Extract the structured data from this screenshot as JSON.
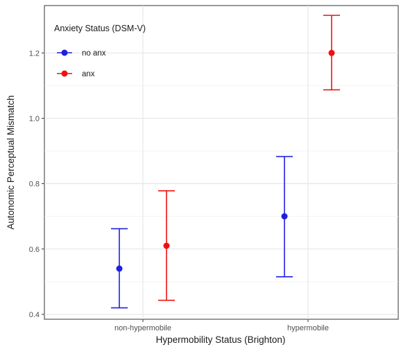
{
  "chart_data": {
    "type": "scatter",
    "subtype": "point-with-error-bars",
    "title": "",
    "xlabel": "Hypermobility Status (Brighton)",
    "ylabel": "Autonomic Perceptual Mismatch",
    "categories": [
      "non-hypermobile",
      "hypermobile"
    ],
    "ylim": [
      0.385,
      1.345
    ],
    "yticks": [
      0.4,
      0.6,
      0.8,
      1.0,
      1.2
    ],
    "ytick_labels": [
      "0.4",
      "0.6",
      "0.8",
      "1.0",
      "1.2"
    ],
    "grid": true,
    "legend": {
      "title": "Anxiety Status (DSM-V)",
      "placement": "top-left"
    },
    "series": [
      {
        "name": "no anx",
        "color": "#1f1fe0",
        "values": [
          0.54,
          0.7
        ],
        "lower": [
          0.42,
          0.515
        ],
        "upper": [
          0.662,
          0.883
        ]
      },
      {
        "name": "anx",
        "color": "#ee1111",
        "values": [
          0.61,
          1.2
        ],
        "lower": [
          0.443,
          1.087
        ],
        "upper": [
          0.778,
          1.315
        ]
      }
    ]
  }
}
